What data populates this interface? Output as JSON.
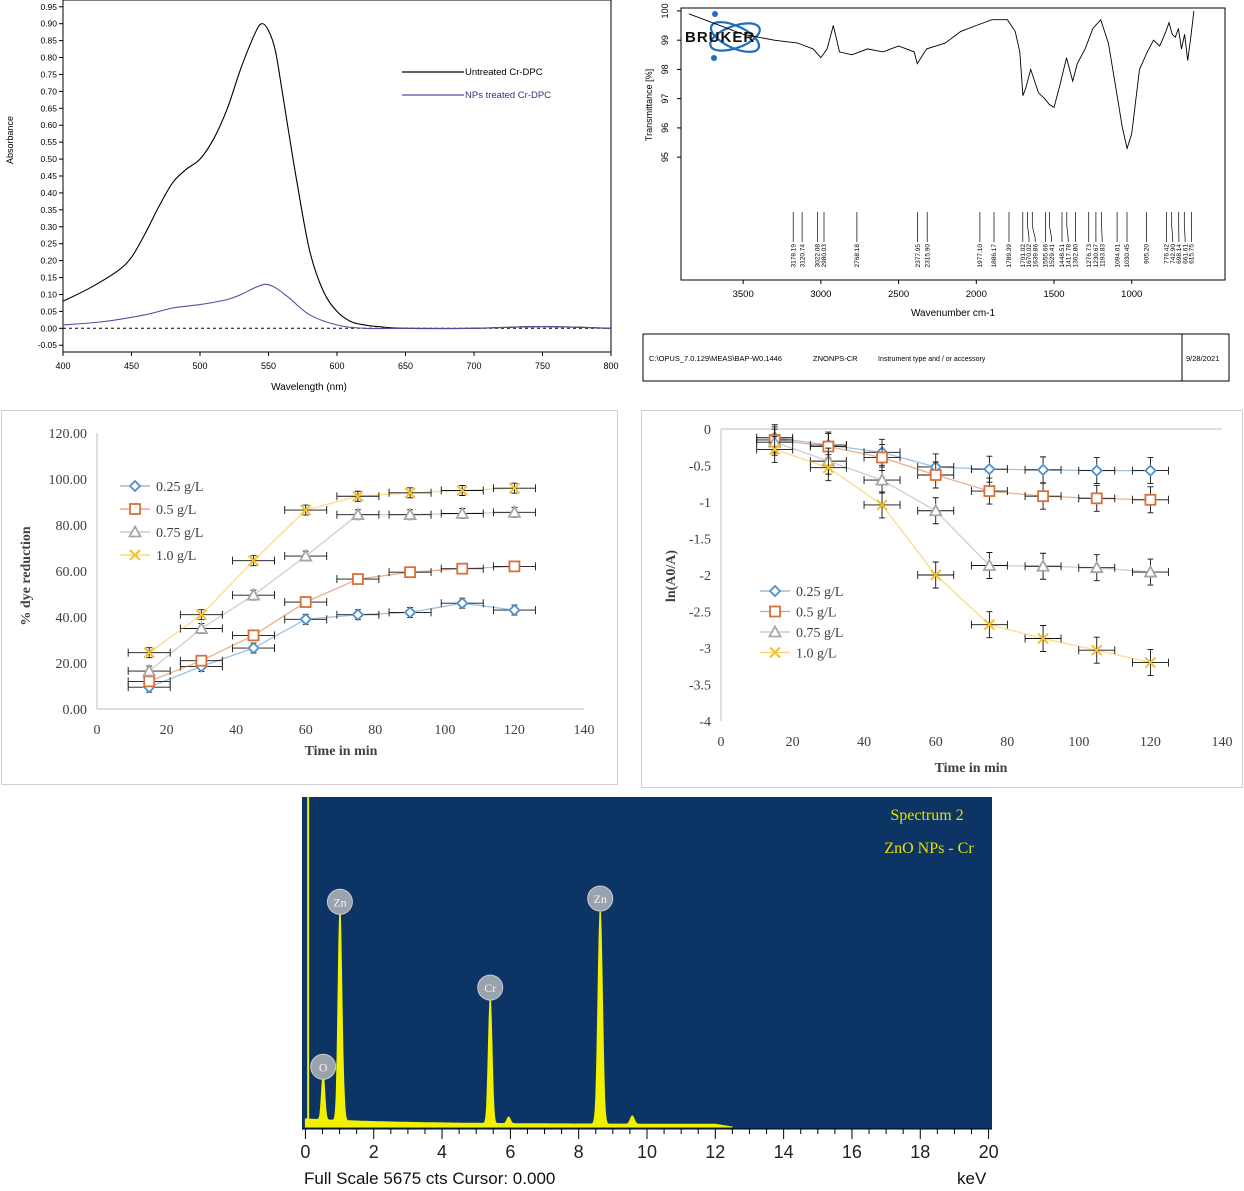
{
  "chart_data": [
    {
      "type": "line",
      "xlabel": "Wavelength (nm)",
      "ylabel": "Absorbance",
      "xlim": [
        400,
        800
      ],
      "ylim": [
        -0.07,
        0.97
      ],
      "xticks": [
        "400",
        "450",
        "500",
        "550",
        "600",
        "650",
        "700",
        "750",
        "800"
      ],
      "yticks": [
        "-0.05",
        "0.00",
        "0.05",
        "0.10",
        "0.15",
        "0.20",
        "0.25",
        "0.30",
        "0.35",
        "0.40",
        "0.45",
        "0.50",
        "0.55",
        "0.60",
        "0.65",
        "0.70",
        "0.75",
        "0.80",
        "0.85",
        "0.90",
        "0.95"
      ],
      "baseline_dashed": true,
      "legend_position": "top-right",
      "series": [
        {
          "name": "Untreated Cr-DPC",
          "color": "#000000",
          "x": [
            400,
            420,
            440,
            450,
            460,
            470,
            480,
            490,
            500,
            510,
            520,
            530,
            540,
            545,
            550,
            555,
            560,
            570,
            580,
            590,
            600,
            610,
            620,
            630,
            650,
            700,
            750,
            800
          ],
          "y": [
            0.08,
            0.12,
            0.17,
            0.21,
            0.28,
            0.36,
            0.43,
            0.47,
            0.5,
            0.56,
            0.65,
            0.77,
            0.87,
            0.9,
            0.88,
            0.82,
            0.7,
            0.45,
            0.23,
            0.11,
            0.05,
            0.02,
            0.01,
            0.005,
            0.0,
            0.0,
            0.005,
            0.0
          ]
        },
        {
          "name": "NPs treated Cr-DPC",
          "color": "#5a4aa0",
          "x": [
            400,
            430,
            460,
            480,
            500,
            520,
            530,
            540,
            548,
            555,
            565,
            580,
            600,
            620,
            650,
            700,
            750,
            800
          ],
          "y": [
            0.01,
            0.02,
            0.04,
            0.06,
            0.07,
            0.085,
            0.1,
            0.12,
            0.13,
            0.12,
            0.09,
            0.04,
            0.01,
            0.0,
            0.0,
            0.0,
            0.005,
            0.0
          ]
        }
      ]
    },
    {
      "type": "line",
      "brand": "BRUKER",
      "xlabel": "Wavenumber cm-1",
      "ylabel": "Transmittance [%]",
      "xlim": [
        3900,
        400
      ],
      "ylim": [
        90.8,
        100.1
      ],
      "xticks": [
        "3500",
        "3000",
        "2500",
        "2000",
        "1500",
        "1000"
      ],
      "yticks": [
        "95",
        "96",
        "97",
        "98",
        "99",
        "100"
      ],
      "series": [
        {
          "name": "",
          "color": "#000000",
          "x": [
            3850,
            3700,
            3500,
            3300,
            3150,
            3100,
            3050,
            3000,
            2960,
            2920,
            2880,
            2800,
            2700,
            2600,
            2500,
            2400,
            2380,
            2320,
            2200,
            2100,
            2000,
            1900,
            1800,
            1750,
            1720,
            1700,
            1680,
            1650,
            1600,
            1560,
            1530,
            1500,
            1460,
            1420,
            1380,
            1350,
            1300,
            1250,
            1200,
            1150,
            1100,
            1060,
            1030,
            1000,
            950,
            900,
            860,
            820,
            780,
            760,
            740,
            720,
            700,
            680,
            660,
            640,
            620,
            600
          ],
          "y": [
            99.9,
            99.6,
            99.2,
            99.0,
            98.9,
            98.8,
            98.7,
            98.4,
            98.7,
            99.5,
            98.6,
            98.5,
            98.7,
            98.6,
            98.8,
            98.6,
            98.2,
            98.7,
            98.9,
            99.3,
            99.5,
            99.7,
            99.7,
            99.3,
            98.6,
            97.1,
            97.4,
            98.0,
            97.2,
            97.0,
            96.8,
            96.7,
            97.5,
            98.4,
            97.6,
            98.2,
            98.7,
            99.4,
            99.7,
            98.9,
            97.3,
            96.0,
            95.3,
            95.8,
            98.0,
            98.6,
            99.0,
            98.8,
            99.3,
            99.6,
            99.2,
            99.1,
            99.4,
            98.7,
            99.2,
            98.3,
            99.1,
            100.0
          ]
        }
      ],
      "peak_labels": [
        "3178.19",
        "3120.74",
        "3022.08",
        "2980.03",
        "2768.18",
        "2377.95",
        "2315.90",
        "1977.10",
        "1886.17",
        "1789.39",
        "1701.02",
        "1670.02",
        "1639.86",
        "1555.66",
        "1529.41",
        "1448.51",
        "1417.78",
        "1362.80",
        "1276.73",
        "1230.67",
        "1193.83",
        "1094.01",
        "1030.45",
        "905.20",
        "776.42",
        "742.90",
        "698.14",
        "661.61",
        "615.75"
      ],
      "footer": {
        "path": "C:\\OPUS_7.0.129\\MEAS\\BAP-W0.1446",
        "sample": "ZNONPS-CR",
        "instrument": "Instrument type and / or accessory",
        "date": "9/28/2021"
      }
    },
    {
      "type": "line",
      "xlabel": "Time in min",
      "ylabel": "% dye reduction",
      "xlim": [
        0,
        140
      ],
      "ylim": [
        0,
        120
      ],
      "xticks": [
        "0",
        "20",
        "40",
        "60",
        "80",
        "100",
        "120",
        "140"
      ],
      "yticks": [
        "0.00",
        "20.00",
        "40.00",
        "60.00",
        "80.00",
        "100.00",
        "120.00"
      ],
      "legend_position": "top-left",
      "error_bars": true,
      "series": [
        {
          "name": "0.25 g/L",
          "color": "#4f90c8",
          "marker": "diamond",
          "x": [
            15,
            30,
            45,
            60,
            75,
            90,
            105,
            120
          ],
          "y": [
            9.5,
            18.5,
            26.5,
            39,
            41,
            42,
            46,
            43
          ]
        },
        {
          "name": "0.5 g/L",
          "color": "#d9703a",
          "marker": "square",
          "x": [
            15,
            30,
            45,
            60,
            75,
            90,
            105,
            120
          ],
          "y": [
            12,
            21,
            32,
            46.5,
            56.5,
            59.5,
            61,
            62
          ]
        },
        {
          "name": "0.75 g/L",
          "color": "#a6a6a6",
          "marker": "triangle",
          "x": [
            15,
            30,
            45,
            60,
            75,
            90,
            105,
            120
          ],
          "y": [
            16.5,
            35,
            49.5,
            66.5,
            84.5,
            84.5,
            85,
            85.5
          ]
        },
        {
          "name": "1.0 g/L",
          "color": "#f5c02a",
          "marker": "x",
          "x": [
            15,
            30,
            45,
            60,
            75,
            90,
            105,
            120
          ],
          "y": [
            24.5,
            41,
            64.5,
            86.5,
            92.5,
            94,
            95,
            96
          ]
        }
      ]
    },
    {
      "type": "line",
      "xlabel": "Time in min",
      "ylabel": "ln(A0/A)",
      "xlim": [
        0,
        140
      ],
      "ylim": [
        -4,
        0
      ],
      "xticks": [
        "0",
        "20",
        "40",
        "60",
        "80",
        "100",
        "120",
        "140"
      ],
      "yticks": [
        "0",
        "-0.5",
        "-1",
        "-1.5",
        "-2",
        "-2.5",
        "-3",
        "-3.5",
        "-4"
      ],
      "legend_position": "bottom-left",
      "error_bars": true,
      "series": [
        {
          "name": "0.25 g/L",
          "color": "#4f90c8",
          "marker": "diamond",
          "x": [
            15,
            30,
            45,
            60,
            75,
            90,
            105,
            120
          ],
          "y": [
            -0.12,
            -0.22,
            -0.32,
            -0.52,
            -0.55,
            -0.56,
            -0.57,
            -0.57
          ]
        },
        {
          "name": "0.5 g/L",
          "color": "#d9703a",
          "marker": "square",
          "x": [
            15,
            30,
            45,
            60,
            75,
            90,
            105,
            120
          ],
          "y": [
            -0.15,
            -0.24,
            -0.39,
            -0.63,
            -0.85,
            -0.92,
            -0.95,
            -0.97
          ]
        },
        {
          "name": "0.75 g/L",
          "color": "#a6a6a6",
          "marker": "triangle",
          "x": [
            15,
            30,
            45,
            60,
            75,
            90,
            105,
            120
          ],
          "y": [
            -0.18,
            -0.44,
            -0.7,
            -1.12,
            -1.87,
            -1.88,
            -1.9,
            -1.96
          ]
        },
        {
          "name": "1.0 g/L",
          "color": "#f5c02a",
          "marker": "x",
          "x": [
            15,
            30,
            45,
            60,
            75,
            90,
            105,
            120
          ],
          "y": [
            -0.28,
            -0.53,
            -1.04,
            -2.0,
            -2.68,
            -2.87,
            -3.03,
            -3.2
          ]
        }
      ]
    },
    {
      "type": "line",
      "title": "Spectrum 2",
      "subtitle": "ZnO NPs - Cr",
      "xunit": "keV",
      "xlim": [
        -0.1,
        20.1
      ],
      "xticks": [
        "0",
        "2",
        "4",
        "6",
        "8",
        "10",
        "12",
        "14",
        "16",
        "18",
        "20"
      ],
      "footer": "Full Scale 5675 cts Cursor: 0.000",
      "background_color": "#0c3566",
      "trace_color": "#f0f000",
      "peaks": [
        {
          "label": "O",
          "x": 0.52,
          "height": 0.14
        },
        {
          "label": "Zn",
          "x": 1.01,
          "height": 0.64
        },
        {
          "label": "Cr",
          "x": 5.41,
          "height": 0.38
        },
        {
          "label": "Zn",
          "x": 8.63,
          "height": 0.65
        }
      ],
      "initial_spike": {
        "x": 0.08,
        "height": 1.0
      }
    }
  ]
}
